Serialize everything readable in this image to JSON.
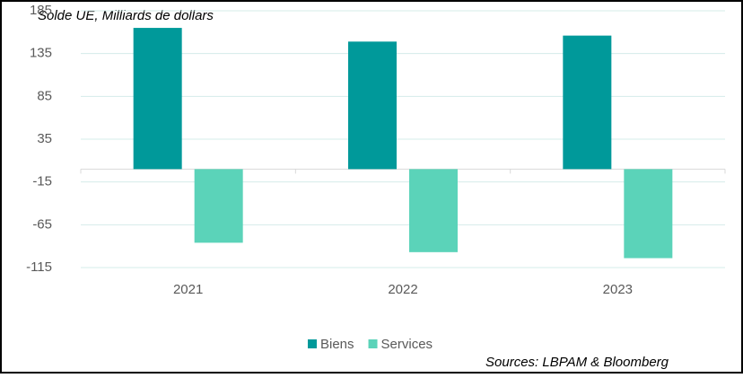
{
  "chart_data": {
    "type": "bar",
    "title": "Solde UE, Milliards de dollars",
    "source": "Sources: LBPAM & Bloomberg",
    "categories": [
      "2021",
      "2022",
      "2023"
    ],
    "series": [
      {
        "name": "Biens",
        "color": "#00999a",
        "values": [
          165,
          149,
          156
        ]
      },
      {
        "name": "Services",
        "color": "#5bd3b9",
        "values": [
          -86,
          -97,
          -104
        ]
      }
    ],
    "ylim": [
      -115,
      185
    ],
    "yticks": [
      -115,
      -65,
      -15,
      35,
      85,
      135,
      185
    ],
    "grid": true,
    "legend": "bottom"
  }
}
